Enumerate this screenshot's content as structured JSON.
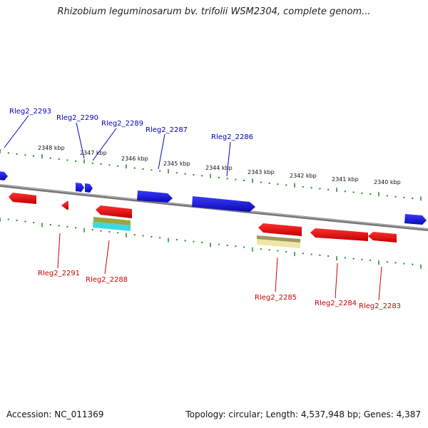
{
  "title": "Rhizobium leguminosarum bv. trifolii WSM2304, complete genom...",
  "footer": {
    "accession": "Accession: NC_011369",
    "info": "Topology: circular; Length: 4,537,948 bp; Genes: 4,387"
  },
  "colors": {
    "forward_gene": "#1010e0",
    "reverse_gene": "#e81010",
    "forward_label": "#0000bb",
    "reverse_label": "#cc0000",
    "tick": "#1e8c1e",
    "backbone": "#888888",
    "feature_olive": "#9aa640",
    "feature_cyan": "#40d8e0",
    "feature_yellow": "#efe6a6"
  },
  "ruler": {
    "labels": [
      "2348 kbp",
      "2347 kbp",
      "2346 kbp",
      "2345 kbp",
      "2344 kbp",
      "2343 kbp",
      "2342 kbp",
      "2341 kbp",
      "2340 kbp"
    ]
  },
  "forward_labels": [
    "Rleg2_2293",
    "Rleg2_2290",
    "Rleg2_2289",
    "Rleg2_2287",
    "Rleg2_2286"
  ],
  "reverse_labels": [
    "Rleg2_2291",
    "Rleg2_2288",
    "Rleg2_2285",
    "Rleg2_2284",
    "Rleg2_2283"
  ]
}
